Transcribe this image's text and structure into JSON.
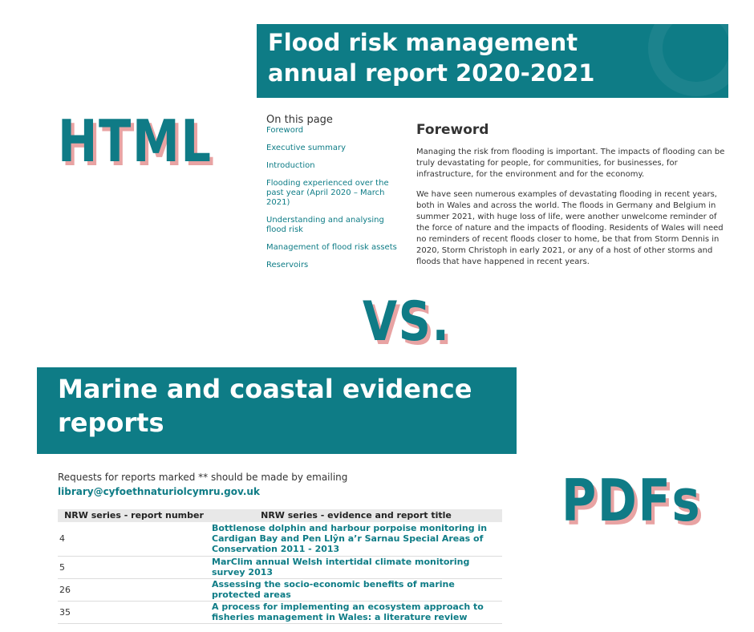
{
  "labels": {
    "html": "HTML",
    "vs": "VS.",
    "pdfs": "PDFs"
  },
  "top_page": {
    "title_line1": "Flood risk management",
    "title_line2": "annual report 2020-2021",
    "toc_heading": "On this page",
    "toc_items": [
      "Foreword",
      "Executive summary",
      "Introduction",
      "Flooding experienced over the past year (April 2020 – March 2021)",
      "Understanding and analysing flood risk",
      "Management of flood risk assets",
      "Reservoirs"
    ],
    "section_heading": "Foreword",
    "paragraphs": [
      "Managing the risk from flooding is important. The impacts of flooding can be truly devastating for people, for communities, for businesses, for infrastructure, for the environment and for the economy.",
      "We have seen numerous examples of devastating flooding in recent years, both in Wales and across the world. The floods in Germany and Belgium in summer 2021, with huge loss of life, were another unwelcome reminder of the force of nature and the impacts of flooding. Residents of Wales will need no reminders of recent floods closer to home, be that from Storm Dennis in 2020, Storm Christoph in early 2021, or any of a host of other storms and floods that have happened in recent years."
    ]
  },
  "bottom_page": {
    "title_line1": "Marine and coastal evidence",
    "title_line2": "reports",
    "intro_text": "Requests for reports marked ** should be made by emailing ",
    "intro_email": "library@cyfoethnaturiolcymru.gov.uk",
    "table": {
      "headers": [
        "NRW series - report number",
        "NRW series - evidence and report title"
      ],
      "rows": [
        {
          "number": "4",
          "title": "Bottlenose dolphin and harbour porpoise monitoring in Cardigan Bay and Pen Llŷn a’r Sarnau Special Areas of Conservation 2011 - 2013"
        },
        {
          "number": "5",
          "title": "MarClim annual Welsh intertidal climate monitoring survey 2013"
        },
        {
          "number": "26",
          "title": "Assessing the socio-economic benefits of marine protected areas"
        },
        {
          "number": "35",
          "title": "A process for implementing an ecosystem approach to fisheries management in Wales: a literature review"
        }
      ]
    }
  },
  "colors": {
    "teal": "#0e7c86",
    "shadow_pink": "#e8a3a3"
  }
}
